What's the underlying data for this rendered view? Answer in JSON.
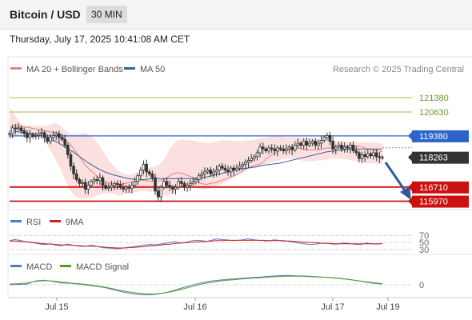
{
  "header": {
    "title": "Bitcoin / USD",
    "timeframe": "30 MIN",
    "datetime": "Thursday, July 17, 2025 10:41:08 AM CET"
  },
  "legend": {
    "ma20_label": "MA 20 + Bollinger Bands",
    "ma50_label": "MA 50",
    "source": "Research © 2025 Trading Central",
    "rsi_label": "RSI",
    "rsi_ma_label": "9MA",
    "macd_label": "MACD",
    "macd_signal_label": "MACD Signal"
  },
  "colors": {
    "ma20": "#e58080",
    "ma50": "#355f9e",
    "bollinger_fill": "#fbe0e0",
    "resistance": "#9cbf4a",
    "support": "#cc1111",
    "current_price_line": "#2d64c8",
    "current_price_badge": "#2d64c8",
    "last_price_badge": "#333333",
    "arrow": "#2d5b9a",
    "rsi": "#5577cc",
    "rsi_ma": "#cc2222",
    "macd": "#5577cc",
    "macd_signal": "#55a022",
    "candle": "#333333"
  },
  "chart_data": {
    "type": "candlestick",
    "title": "Bitcoin / USD",
    "timeframe": "30 MIN",
    "x_ticks": [
      "Jul 15",
      "Jul 16",
      "Jul 17",
      "Jul 19"
    ],
    "ylim": [
      115700,
      122300
    ],
    "price_labels": [
      {
        "value": 121380,
        "text": "121380",
        "kind": "resistance"
      },
      {
        "value": 120630,
        "text": "120630",
        "kind": "resistance"
      },
      {
        "value": 119380,
        "text": "119380",
        "kind": "pivot"
      },
      {
        "value": 118263,
        "text": "118263",
        "kind": "last"
      },
      {
        "value": 116710,
        "text": "116710",
        "kind": "support"
      },
      {
        "value": 115970,
        "text": "115970",
        "kind": "support"
      }
    ],
    "close": [
      119500,
      119800,
      119750,
      119800,
      119650,
      119500,
      119300,
      119450,
      119350,
      119400,
      119500,
      119550,
      119300,
      119100,
      119300,
      119400,
      119500,
      119300,
      119200,
      118900,
      118400,
      117800,
      117400,
      117100,
      116900,
      116950,
      116600,
      116800,
      117000,
      117100,
      117050,
      117200,
      116800,
      116650,
      116700,
      116800,
      116900,
      116850,
      116700,
      116600,
      116700,
      116650,
      116800,
      117000,
      117300,
      117600,
      117900,
      117500,
      117400,
      117200,
      116500,
      116200,
      116700,
      117000,
      116800,
      116700,
      116600,
      116700,
      117000,
      116900,
      116700,
      116800,
      116900,
      117000,
      117100,
      117300,
      117400,
      117500,
      117600,
      117400,
      117500,
      117600,
      117800,
      117700,
      117600,
      117500,
      117700,
      117600,
      117700,
      117800,
      117900,
      118000,
      118100,
      118200,
      118300,
      118500,
      118800,
      118700,
      118600,
      118750,
      118700,
      118600,
      118750,
      118700,
      118600,
      118700,
      118800,
      118650,
      118900,
      119000,
      118900,
      119100,
      118900,
      119000,
      119100,
      118900,
      119000,
      119150,
      119300,
      119400,
      119100,
      118700,
      118800,
      118900,
      118700,
      118800,
      118750,
      118900,
      118600,
      118500,
      118200,
      118400,
      118300,
      118450,
      118350,
      118500,
      118300,
      118250,
      118263
    ],
    "ma20": [
      119850,
      119950,
      119900,
      119850,
      119800,
      119750,
      119700,
      119650,
      119600,
      119550,
      119450,
      119200,
      118950,
      118600,
      118250,
      117850,
      117600,
      117350,
      117150,
      117000,
      116900,
      116850,
      116850,
      116900,
      116950,
      117000,
      117050,
      117050,
      117000,
      117000,
      117050,
      117150,
      117350,
      117450,
      117450,
      117350,
      117250,
      117050,
      116900,
      116850,
      116900,
      116950,
      117050,
      117150,
      117250,
      117350,
      117500,
      117650,
      117800,
      117850,
      117950,
      118200,
      118400,
      118550,
      118650,
      118700,
      118750,
      118750,
      118700,
      118650,
      118650,
      118650,
      118700,
      118750,
      118750,
      118800,
      118850,
      118850,
      118900,
      118850,
      118800,
      118700,
      118650,
      118600,
      118550
    ],
    "ma50": [
      119650,
      119600,
      119550,
      119500,
      119400,
      119250,
      119050,
      118800,
      118550,
      118250,
      117950,
      117700,
      117500,
      117350,
      117250,
      117150,
      117100,
      117100,
      117150,
      117150,
      117150,
      117150,
      117150,
      117150,
      117200,
      117250,
      117350,
      117450,
      117550,
      117650,
      117700,
      117750,
      117850,
      117900,
      117950,
      118050,
      118150,
      118250,
      118350,
      118450,
      118550,
      118600,
      118650,
      118700,
      118700,
      118700,
      118700,
      118700
    ],
    "bb_upper": [
      120900,
      120500,
      120100,
      119900,
      119950,
      119900,
      119900,
      119900,
      119950,
      120050,
      119950,
      119700,
      119500,
      119450,
      119500,
      119550,
      119400,
      119200,
      118800,
      118400,
      118000,
      117700,
      117500,
      117350,
      117350,
      117450,
      117600,
      117650,
      117750,
      117800,
      117950,
      118300,
      118800,
      119100,
      119200,
      119150,
      119150,
      119100,
      119050,
      119000,
      119050,
      119100,
      119150,
      119150,
      119150,
      119100,
      119100,
      119150,
      119150,
      119200,
      119250,
      119300,
      119350,
      119350,
      119350,
      119300,
      119300,
      119300,
      119300,
      119250,
      119250,
      119200,
      119200,
      119200,
      119200,
      119100,
      119100,
      119100,
      119050,
      119050,
      119050,
      119050,
      119050,
      119000,
      119000
    ],
    "bb_lower": [
      119200,
      119350,
      119400,
      119500,
      119500,
      119450,
      119300,
      119100,
      118700,
      118200,
      117700,
      117100,
      116550,
      116250,
      116100,
      116100,
      116150,
      116250,
      116350,
      116350,
      116400,
      116300,
      116250,
      116350,
      116400,
      116450,
      116500,
      116500,
      116450,
      116500,
      116400,
      116250,
      116300,
      116500,
      116700,
      116750,
      116700,
      116650,
      116600,
      116600,
      116650,
      116750,
      116850,
      117000,
      117150,
      117300,
      117450,
      117600,
      117700,
      117750,
      117850,
      117950,
      118000,
      118050,
      118150,
      118200,
      118200,
      118150,
      118100,
      118050,
      118050,
      118100,
      118100,
      118150,
      118200,
      118200,
      118200,
      118150,
      118100,
      118050,
      118000,
      117950,
      117950,
      117900,
      117900
    ],
    "rsi": [
      55,
      58,
      56,
      52,
      50,
      48,
      45,
      44,
      46,
      42,
      40,
      45,
      43,
      40,
      38,
      40,
      42,
      38,
      35,
      34,
      33,
      32,
      34,
      36,
      38,
      40,
      42,
      44,
      43,
      45,
      47,
      50,
      52,
      48,
      50,
      54,
      56,
      55,
      53,
      56,
      60,
      58,
      57,
      55,
      56,
      57,
      60,
      58,
      56,
      55,
      54,
      57,
      56,
      55,
      53,
      50,
      48,
      46,
      44,
      45,
      47,
      48,
      46,
      45,
      47,
      48,
      46,
      44,
      45,
      48,
      46,
      45,
      47
    ],
    "rsi_ma": [
      54,
      54,
      53,
      52,
      51,
      49,
      47,
      46,
      45,
      44,
      43,
      43,
      42,
      41,
      40,
      39,
      39,
      38,
      37,
      36,
      35,
      34,
      34,
      35,
      36,
      37,
      38,
      40,
      41,
      42,
      44,
      45,
      47,
      48,
      49,
      50,
      51,
      52,
      53,
      54,
      55,
      55,
      56,
      56,
      56,
      56,
      56,
      56,
      56,
      56,
      55,
      55,
      55,
      54,
      54,
      53,
      52,
      51,
      50,
      49,
      48,
      47,
      47,
      46,
      46,
      46,
      46,
      46,
      46,
      46,
      46,
      46,
      46
    ],
    "rsi_levels": [
      {
        "value": 70,
        "text": "70"
      },
      {
        "value": 50,
        "text": "50"
      },
      {
        "value": 30,
        "text": "30"
      }
    ],
    "macd": [
      10,
      20,
      40,
      200,
      250,
      180,
      100,
      80,
      40,
      -20,
      -80,
      -150,
      -260,
      -380,
      -470,
      -520,
      -540,
      -500,
      -420,
      -300,
      -150,
      -30,
      100,
      180,
      240,
      290,
      320,
      360,
      390,
      420,
      460,
      490,
      500,
      480,
      470,
      450,
      420,
      390,
      350,
      300,
      230,
      150,
      80,
      40
    ],
    "macd_signal": [
      40,
      60,
      100,
      180,
      220,
      200,
      150,
      100,
      60,
      10,
      -60,
      -130,
      -220,
      -320,
      -400,
      -460,
      -490,
      -480,
      -430,
      -340,
      -220,
      -100,
      20,
      120,
      190,
      240,
      280,
      320,
      350,
      380,
      410,
      440,
      460,
      460,
      450,
      430,
      410,
      380,
      340,
      290,
      230,
      170,
      110,
      60
    ],
    "macd_zero_label": "0"
  }
}
